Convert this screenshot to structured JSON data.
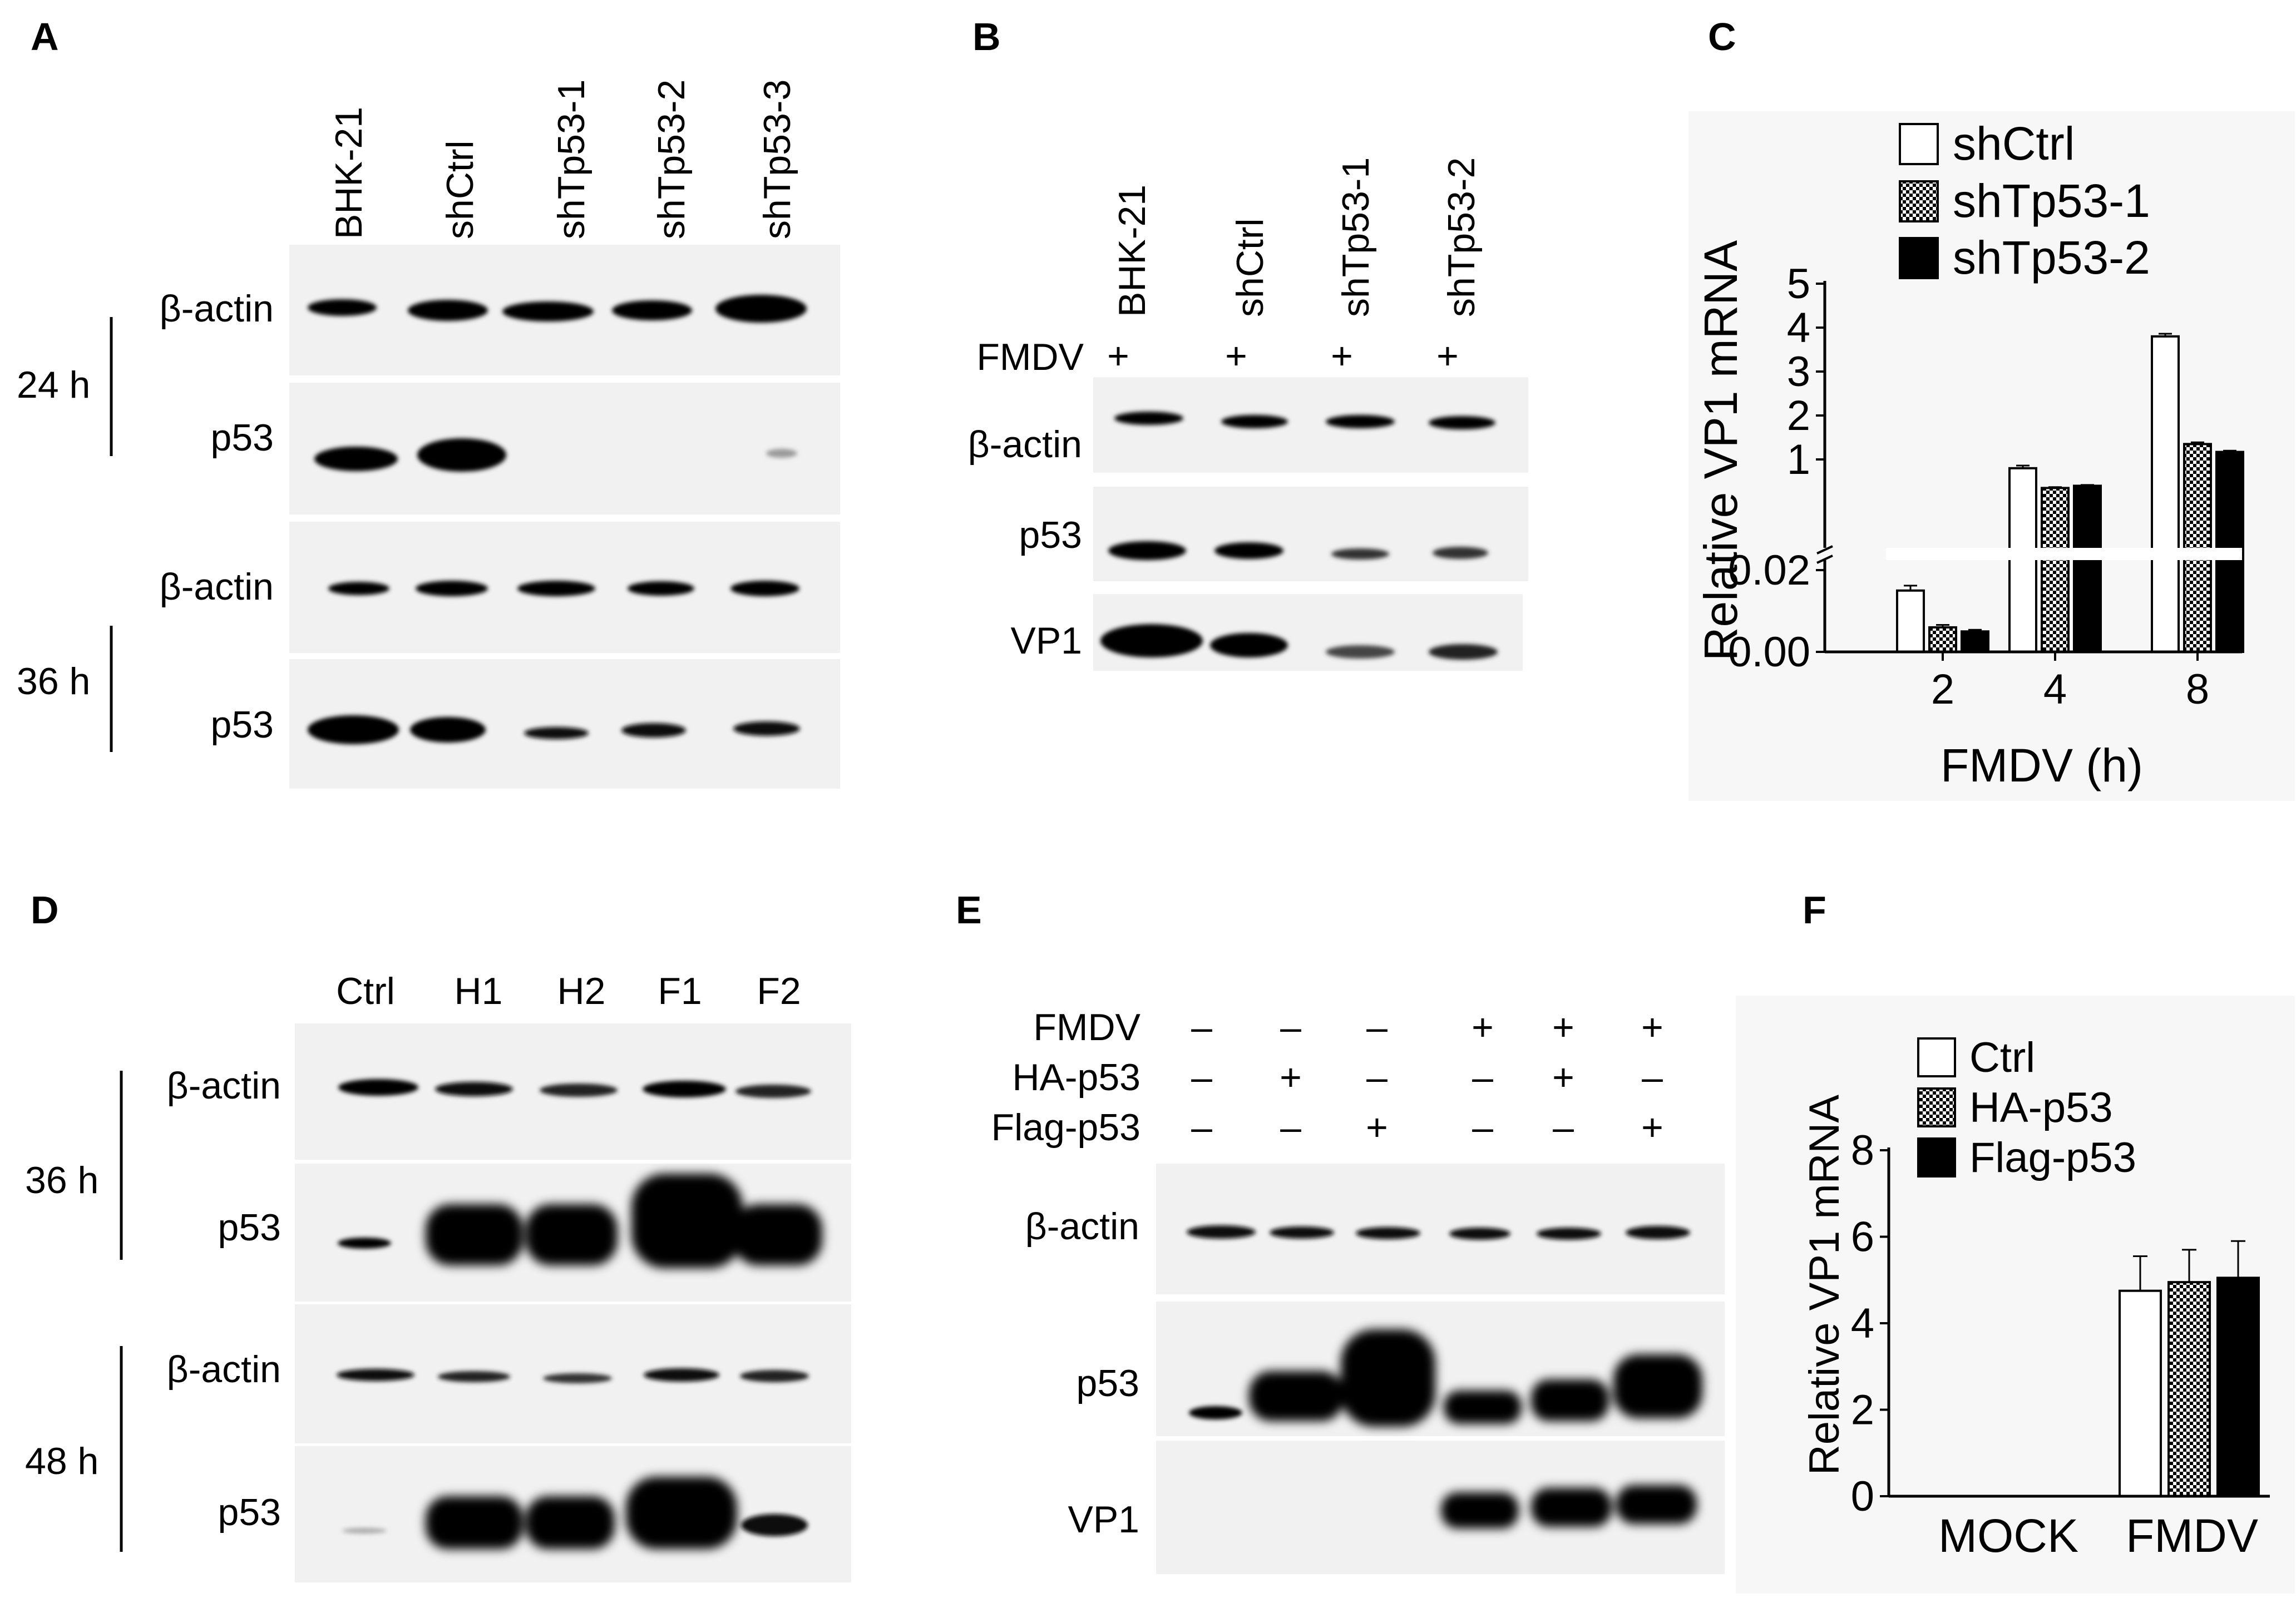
{
  "panels": {
    "A": {
      "letter": "A",
      "lanes": [
        "BHK-21",
        "shCtrl",
        "shTp53-1",
        "shTp53-2",
        "shTp53-3"
      ],
      "rows": [
        "β-actin",
        "p53",
        "β-actin",
        "p53"
      ],
      "times": [
        "24 h",
        "36 h"
      ]
    },
    "B": {
      "letter": "B",
      "lanes": [
        "BHK-21",
        "shCtrl",
        "shTp53-1",
        "shTp53-2"
      ],
      "fmdv_label": "FMDV",
      "fmdv_signs": [
        "+",
        "+",
        "+",
        "+"
      ],
      "rows": [
        "β-actin",
        "p53",
        "VP1"
      ]
    },
    "D": {
      "letter": "D",
      "lanes": [
        "Ctrl",
        "H1",
        "H2",
        "F1",
        "F2"
      ],
      "rows": [
        "β-actin",
        "p53",
        "β-actin",
        "p53"
      ],
      "times": [
        "36 h",
        "48 h"
      ]
    },
    "E": {
      "letter": "E",
      "treatments": [
        {
          "label": "FMDV",
          "signs": [
            "–",
            "–",
            "–",
            "+",
            "+",
            "+"
          ]
        },
        {
          "label": "HA-p53",
          "signs": [
            "–",
            "+",
            "–",
            "–",
            "+",
            "–"
          ]
        },
        {
          "label": "Flag-p53",
          "signs": [
            "–",
            "–",
            "+",
            "–",
            "–",
            "+"
          ]
        }
      ],
      "rows": [
        "β-actin",
        "p53",
        "VP1"
      ]
    }
  },
  "chart_data": [
    {
      "panel": "C",
      "type": "bar",
      "letter": "C",
      "categories": [
        "2",
        "4",
        "8"
      ],
      "series": [
        {
          "name": "shCtrl",
          "pattern": "white",
          "values": [
            0.015,
            0.8,
            3.8
          ],
          "errors": [
            0.0012,
            0.06,
            0.06
          ]
        },
        {
          "name": "shTp53-1",
          "pattern": "checker",
          "values": [
            0.006,
            0.35,
            1.35
          ],
          "errors": [
            0.0006,
            0.02,
            0.04
          ]
        },
        {
          "name": "shTp53-2",
          "pattern": "black",
          "values": [
            0.005,
            0.4,
            1.17
          ],
          "errors": [
            0.0004,
            0.02,
            0.03
          ]
        }
      ],
      "xlabel": "FMDV (h)",
      "ylabel": "Relative VP1 mRNA",
      "y_axis_broken": true,
      "y_lower_range": [
        0,
        0.02
      ],
      "y_upper_range": [
        0,
        5
      ],
      "y_ticks_lower": [
        "0.00",
        "0.02"
      ],
      "y_ticks_upper": [
        "1",
        "2",
        "3",
        "4",
        "5"
      ],
      "legend": "top-right"
    },
    {
      "panel": "F",
      "type": "bar",
      "letter": "F",
      "categories": [
        "MOCK",
        "FMDV"
      ],
      "series": [
        {
          "name": "Ctrl",
          "pattern": "white",
          "values": [
            0,
            4.75
          ],
          "errors": [
            0,
            0.8
          ]
        },
        {
          "name": "HA-p53",
          "pattern": "checker",
          "values": [
            0,
            4.95
          ],
          "errors": [
            0,
            0.75
          ]
        },
        {
          "name": "Flag-p53",
          "pattern": "black",
          "values": [
            0,
            5.05
          ],
          "errors": [
            0,
            0.85
          ]
        }
      ],
      "xlabel": "",
      "ylabel": "Relative VP1 mRNA",
      "ylim": [
        0,
        8
      ],
      "y_ticks": [
        "0",
        "2",
        "4",
        "6",
        "8"
      ],
      "legend": "top-left"
    }
  ]
}
